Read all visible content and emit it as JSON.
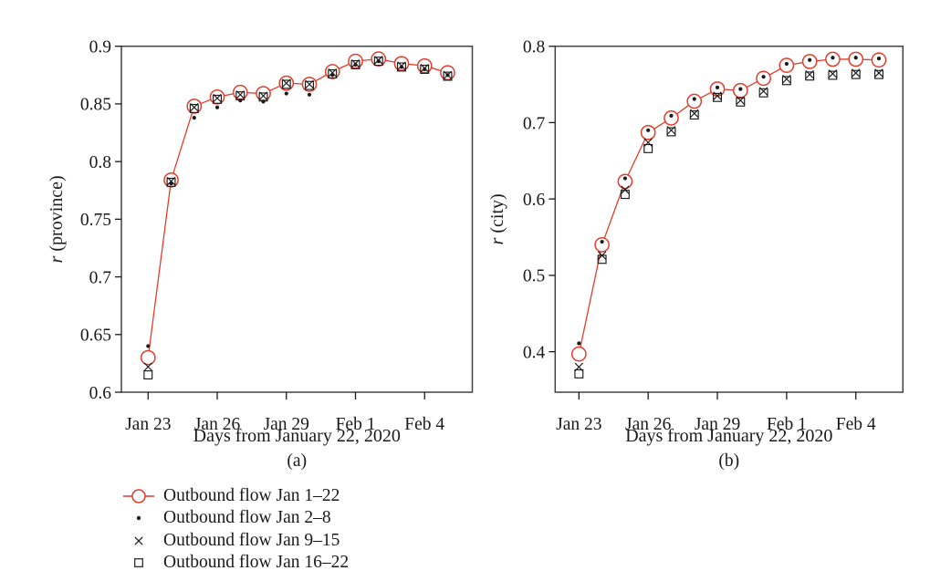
{
  "figure": {
    "background": "#ffffff",
    "accent_red": "#e43c2c",
    "marker_black": "#1a1a1a",
    "frame_color": "#404040",
    "text_color": "#1a1a1a"
  },
  "legend": {
    "items": [
      {
        "label": "Outbound flow Jan 1–22",
        "marker": "circle-line",
        "color": "#e43c2c"
      },
      {
        "label": "Outbound flow Jan 2–8",
        "marker": "dot",
        "color": "#1a1a1a"
      },
      {
        "label": "Outbound flow Jan 9–15",
        "marker": "x",
        "color": "#1a1a1a"
      },
      {
        "label": "Outbound flow Jan 16–22",
        "marker": "square",
        "color": "#1a1a1a"
      }
    ]
  },
  "chart_data": [
    {
      "type": "line",
      "panel_label": "(a)",
      "xlabel": "Days from January 22, 2020",
      "ylabel": "r (province)",
      "ylabel_italic_part": "r",
      "ylabel_rest": "(province)",
      "ylim": [
        0.6,
        0.9
      ],
      "yticks": [
        0.6,
        0.65,
        0.7,
        0.75,
        0.8,
        0.85,
        0.9
      ],
      "ytick_labels": [
        "0.6",
        "0.65",
        "0.7",
        "0.75",
        "0.8",
        "0.85",
        "0.9"
      ],
      "x_days": [
        1,
        2,
        3,
        4,
        5,
        6,
        7,
        8,
        9,
        10,
        11,
        12,
        13,
        14
      ],
      "x_dates": [
        "Jan 23",
        "Jan 24",
        "Jan 25",
        "Jan 26",
        "Jan 27",
        "Jan 28",
        "Jan 29",
        "Jan 30",
        "Jan 31",
        "Feb 1",
        "Feb 2",
        "Feb 3",
        "Feb 4",
        "Feb 5"
      ],
      "xtick_days": [
        1,
        4,
        7,
        10,
        13
      ],
      "xtick_labels": [
        "Jan 23",
        "Jan 26",
        "Jan 29",
        "Feb 1",
        "Feb 4"
      ],
      "grid": false,
      "series": [
        {
          "name": "Outbound flow Jan 1–22",
          "marker": "circle-line",
          "color": "#e43c2c",
          "values": [
            0.63,
            0.784,
            0.848,
            0.856,
            0.86,
            0.859,
            0.868,
            0.867,
            0.878,
            0.887,
            0.889,
            0.885,
            0.883,
            0.877
          ]
        },
        {
          "name": "Outbound flow Jan 2–8",
          "marker": "dot",
          "color": "#1a1a1a",
          "values": [
            0.64,
            0.781,
            0.838,
            0.847,
            0.853,
            0.852,
            0.859,
            0.858,
            0.875,
            0.884,
            0.887,
            0.882,
            0.88,
            0.875
          ]
        },
        {
          "name": "Outbound flow Jan 9–15",
          "marker": "x",
          "color": "#1a1a1a",
          "values": [
            0.622,
            0.783,
            0.847,
            0.855,
            0.858,
            0.857,
            0.868,
            0.867,
            0.877,
            0.885,
            0.888,
            0.883,
            0.881,
            0.875
          ]
        },
        {
          "name": "Outbound flow Jan 16–22",
          "marker": "square",
          "color": "#1a1a1a",
          "values": [
            0.615,
            0.782,
            0.846,
            0.854,
            0.857,
            0.856,
            0.867,
            0.866,
            0.876,
            0.884,
            0.887,
            0.882,
            0.88,
            0.874
          ]
        }
      ]
    },
    {
      "type": "line",
      "panel_label": "(b)",
      "xlabel": "Days from January 22, 2020",
      "ylabel": "r (city)",
      "ylabel_italic_part": "r",
      "ylabel_rest": "(city)",
      "ylim": [
        0.347,
        0.8
      ],
      "yticks": [
        0.4,
        0.5,
        0.6,
        0.7,
        0.8
      ],
      "ytick_labels": [
        "0.4",
        "0.5",
        "0.6",
        "0.7",
        "0.8"
      ],
      "x_days": [
        1,
        2,
        3,
        4,
        5,
        6,
        7,
        8,
        9,
        10,
        11,
        12,
        13,
        14
      ],
      "x_dates": [
        "Jan 23",
        "Jan 24",
        "Jan 25",
        "Jan 26",
        "Jan 27",
        "Jan 28",
        "Jan 29",
        "Jan 30",
        "Jan 31",
        "Feb 1",
        "Feb 2",
        "Feb 3",
        "Feb 4",
        "Feb 5"
      ],
      "xtick_days": [
        1,
        4,
        7,
        10,
        13
      ],
      "xtick_labels": [
        "Jan 23",
        "Jan 26",
        "Jan 29",
        "Feb 1",
        "Feb 4"
      ],
      "grid": false,
      "series": [
        {
          "name": "Outbound flow Jan 1–22",
          "marker": "circle-line",
          "color": "#e43c2c",
          "values": [
            0.397,
            0.54,
            0.623,
            0.687,
            0.706,
            0.728,
            0.744,
            0.742,
            0.758,
            0.775,
            0.78,
            0.783,
            0.783,
            0.782
          ]
        },
        {
          "name": "Outbound flow Jan 2–8",
          "marker": "dot",
          "color": "#1a1a1a",
          "values": [
            0.411,
            0.544,
            0.627,
            0.69,
            0.709,
            0.731,
            0.746,
            0.744,
            0.76,
            0.777,
            0.782,
            0.785,
            0.785,
            0.784
          ]
        },
        {
          "name": "Outbound flow Jan 9–15",
          "marker": "x",
          "color": "#1a1a1a",
          "values": [
            0.38,
            0.526,
            0.612,
            0.674,
            0.69,
            0.712,
            0.735,
            0.729,
            0.741,
            0.757,
            0.763,
            0.764,
            0.765,
            0.765
          ]
        },
        {
          "name": "Outbound flow Jan 16–22",
          "marker": "square",
          "color": "#1a1a1a",
          "values": [
            0.371,
            0.521,
            0.606,
            0.666,
            0.688,
            0.71,
            0.733,
            0.727,
            0.739,
            0.755,
            0.761,
            0.762,
            0.763,
            0.763
          ]
        }
      ]
    }
  ]
}
